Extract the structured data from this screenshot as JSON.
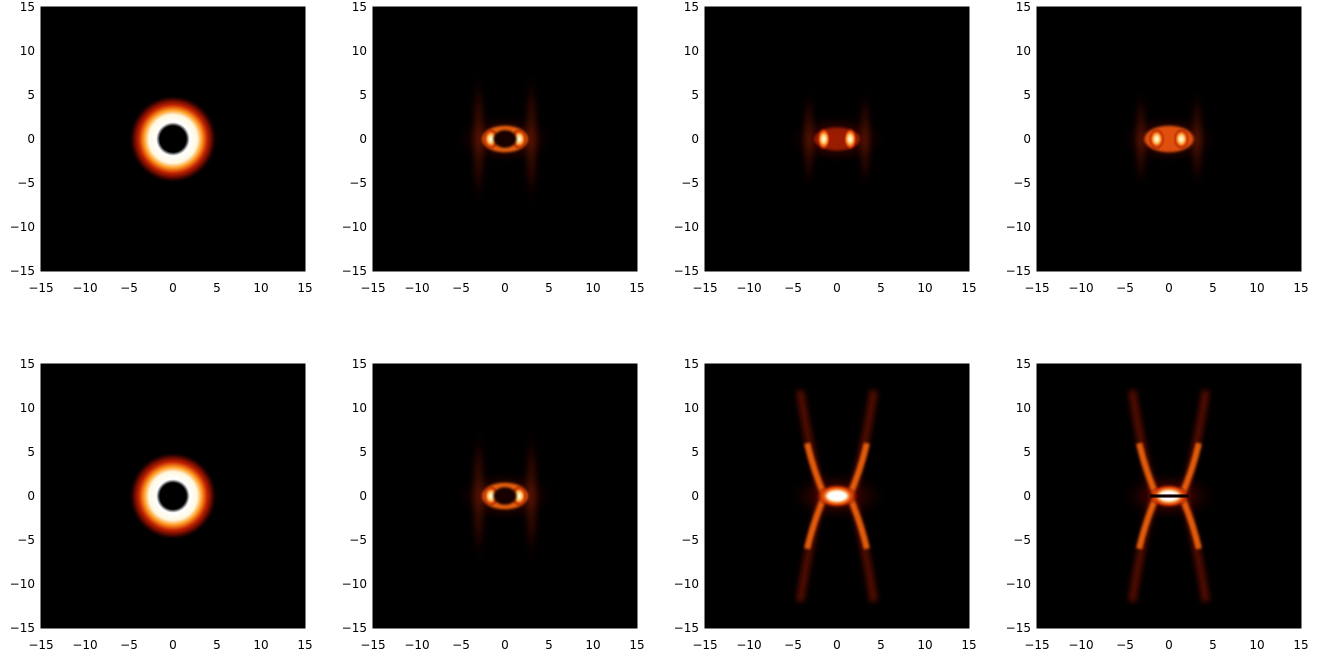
{
  "chart_data": [
    {
      "type": "heatmap",
      "xlim": [
        -15,
        15
      ],
      "ylim": [
        -15,
        15
      ],
      "colormap": "black-red-yellow-white",
      "feature": "ring",
      "xticks": [
        "−15",
        "−10",
        "−5",
        "0",
        "5",
        "10",
        "15"
      ],
      "yticks": [
        "15",
        "10",
        "5",
        "0",
        "−5",
        "−10",
        "−15"
      ]
    },
    {
      "type": "heatmap",
      "xlim": [
        -15,
        15
      ],
      "ylim": [
        -15,
        15
      ],
      "colormap": "black-red-yellow-white",
      "feature": "flattened-ring",
      "xticks": [
        "−15",
        "−10",
        "−5",
        "0",
        "5",
        "10",
        "15"
      ],
      "yticks": [
        "15",
        "10",
        "5",
        "0",
        "−5",
        "−10",
        "−15"
      ]
    },
    {
      "type": "heatmap",
      "xlim": [
        -15,
        15
      ],
      "ylim": [
        -15,
        15
      ],
      "colormap": "black-red-yellow-white",
      "feature": "two-lobes",
      "xticks": [
        "−15",
        "−10",
        "−5",
        "0",
        "5",
        "10",
        "15"
      ],
      "yticks": [
        "15",
        "10",
        "5",
        "0",
        "−5",
        "−10",
        "−15"
      ]
    },
    {
      "type": "heatmap",
      "xlim": [
        -15,
        15
      ],
      "ylim": [
        -15,
        15
      ],
      "colormap": "black-red-yellow-white",
      "feature": "bar",
      "xticks": [
        "−15",
        "−10",
        "−5",
        "0",
        "5",
        "10",
        "15"
      ],
      "yticks": [
        "15",
        "10",
        "5",
        "0",
        "−5",
        "−10",
        "−15"
      ]
    },
    {
      "type": "heatmap",
      "xlim": [
        -15,
        15
      ],
      "ylim": [
        -15,
        15
      ],
      "colormap": "black-red-yellow-white",
      "feature": "ring",
      "xticks": [
        "−15",
        "−10",
        "−5",
        "0",
        "5",
        "10",
        "15"
      ],
      "yticks": [
        "15",
        "10",
        "5",
        "0",
        "−5",
        "−10",
        "−15"
      ]
    },
    {
      "type": "heatmap",
      "xlim": [
        -15,
        15
      ],
      "ylim": [
        -15,
        15
      ],
      "colormap": "black-red-yellow-white",
      "feature": "flattened-ring",
      "xticks": [
        "−15",
        "−10",
        "−5",
        "0",
        "5",
        "10",
        "15"
      ],
      "yticks": [
        "15",
        "10",
        "5",
        "0",
        "−5",
        "−10",
        "−15"
      ]
    },
    {
      "type": "heatmap",
      "xlim": [
        -15,
        15
      ],
      "ylim": [
        -15,
        15
      ],
      "colormap": "black-red-yellow-white",
      "feature": "x-shape",
      "xticks": [
        "−15",
        "−10",
        "−5",
        "0",
        "5",
        "10",
        "15"
      ],
      "yticks": [
        "15",
        "10",
        "5",
        "0",
        "−5",
        "−10",
        "−15"
      ]
    },
    {
      "type": "heatmap",
      "xlim": [
        -15,
        15
      ],
      "ylim": [
        -15,
        15
      ],
      "colormap": "black-red-yellow-white",
      "feature": "x-shape-split",
      "xticks": [
        "−15",
        "−10",
        "−5",
        "0",
        "5",
        "10",
        "15"
      ],
      "yticks": [
        "15",
        "10",
        "5",
        "0",
        "−5",
        "−10",
        "−15"
      ]
    }
  ]
}
